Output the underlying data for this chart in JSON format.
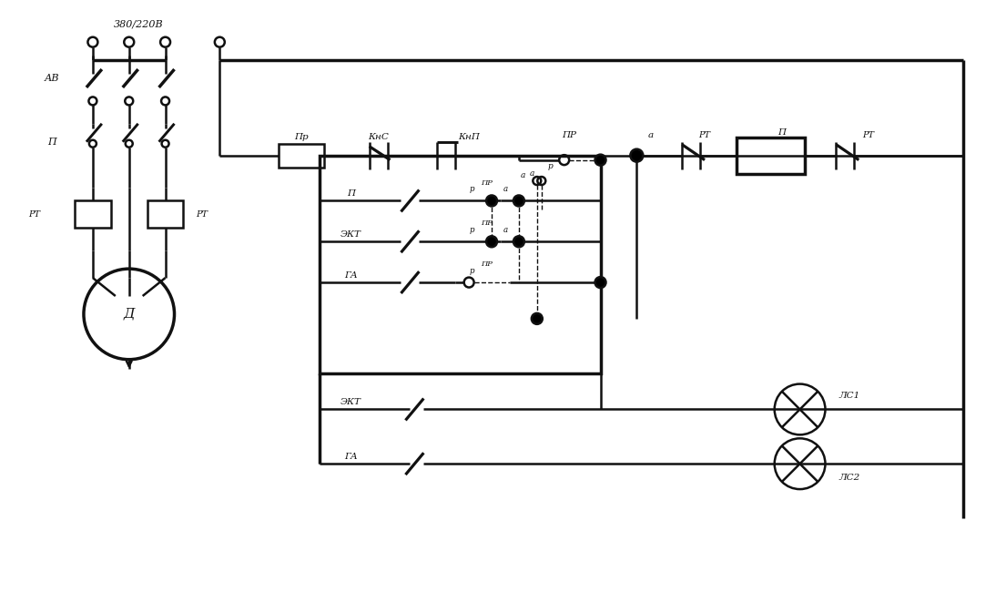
{
  "bg": "#ffffff",
  "lc": "#111111",
  "lw": 1.8,
  "lw_thick": 2.5,
  "lw_thin": 1.0,
  "fw": 10.94,
  "fh": 6.5,
  "xmax": 109.4,
  "ymax": 65.0,
  "text_380": "380/220В",
  "label_AB": "АВ",
  "label_Pr": "Пр",
  "label_KnS": "КнС",
  "label_KnP": "КнП",
  "label_PR": "ПР",
  "label_P": "П",
  "label_RT": "РТ",
  "label_D": "Д",
  "label_LS1": "ЛС1",
  "label_LS2": "ЛС2",
  "label_EKT": "ЭКТ",
  "label_GA": "ГА",
  "label_r": "р",
  "label_a": "а"
}
